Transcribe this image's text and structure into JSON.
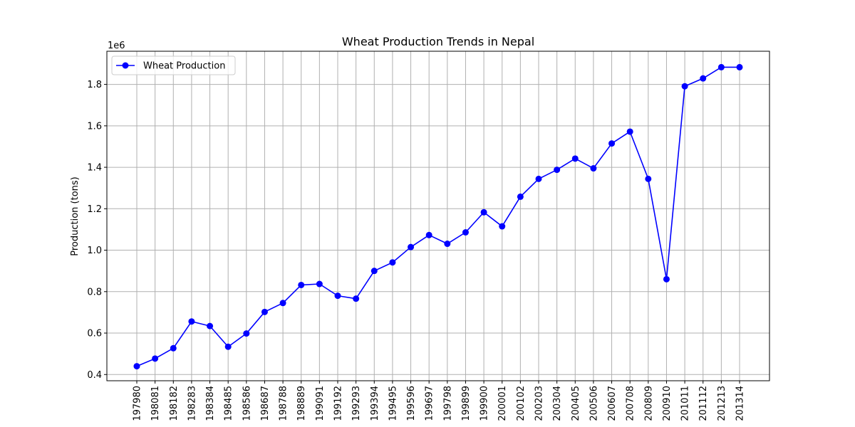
{
  "chart_data": {
    "type": "line",
    "title": "Wheat Production Trends in Nepal",
    "xlabel": "",
    "ylabel": "Production (tons)",
    "y_offset_label": "1e6",
    "ylim": [
      0.37,
      1.96
    ],
    "y_ticks": [
      0.4,
      0.6,
      0.8,
      1.0,
      1.2,
      1.4,
      1.6,
      1.8
    ],
    "y_tick_labels": [
      "0.4",
      "0.6",
      "0.8",
      "1.0",
      "1.2",
      "1.4",
      "1.6",
      "1.8"
    ],
    "grid": true,
    "legend_position": "top-left",
    "categories": [
      "197980",
      "198081",
      "198182",
      "198283",
      "198384",
      "198485",
      "198586",
      "198687",
      "198788",
      "198889",
      "199091",
      "199192",
      "199293",
      "199394",
      "199495",
      "199596",
      "199697",
      "199798",
      "199899",
      "199900",
      "200001",
      "200102",
      "200203",
      "200304",
      "200405",
      "200506",
      "200607",
      "200708",
      "200809",
      "200910",
      "201011",
      "201112",
      "201213",
      "201314"
    ],
    "series": [
      {
        "name": "Wheat Production",
        "color": "#0000ff",
        "values": [
          0.44,
          0.477,
          0.527,
          0.656,
          0.634,
          0.534,
          0.598,
          0.702,
          0.745,
          0.832,
          0.837,
          0.78,
          0.766,
          0.9,
          0.941,
          1.015,
          1.073,
          1.031,
          1.086,
          1.183,
          1.115,
          1.258,
          1.344,
          1.388,
          1.442,
          1.395,
          1.515,
          1.572,
          1.344,
          0.86,
          1.791,
          1.829,
          1.883,
          1.883
        ]
      }
    ]
  }
}
